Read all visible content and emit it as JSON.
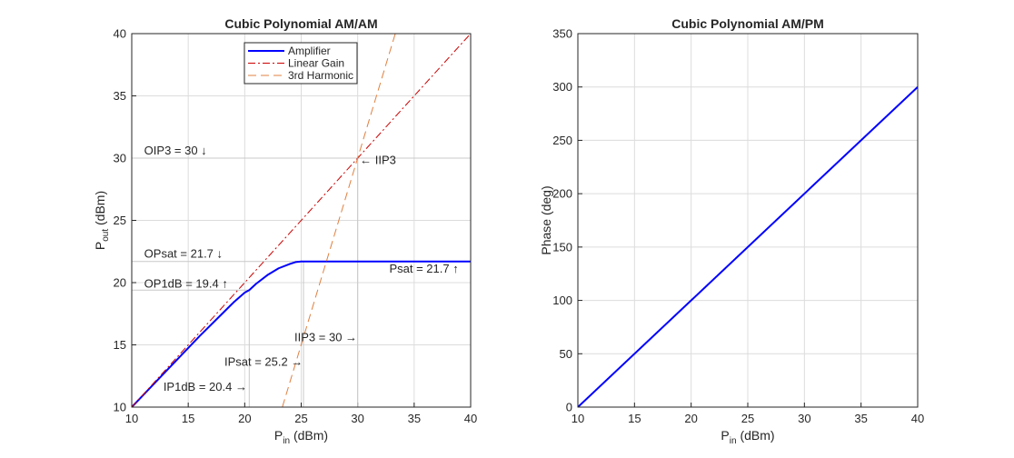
{
  "colors": {
    "amplifier": "#0000ff",
    "linear_gain": "#cc0000",
    "third_harmonic": "#e08040",
    "grid": "#dcdcdc",
    "axes": "#262626",
    "reference_line": "#c8c8c8"
  },
  "chart_data": [
    {
      "type": "line",
      "title": "Cubic Polynomial AM/AM",
      "xlabel": {
        "main": "P",
        "sub": "in",
        "rest": " (dBm)"
      },
      "ylabel": {
        "main": "P",
        "sub": "out",
        "rest": " (dBm)"
      },
      "xlim": [
        10,
        40
      ],
      "ylim": [
        10,
        40
      ],
      "xticks": [
        "10",
        "15",
        "20",
        "25",
        "30",
        "35",
        "40"
      ],
      "yticks": [
        "10",
        "15",
        "20",
        "25",
        "30",
        "35",
        "40"
      ],
      "grid": true,
      "legend": {
        "placement": "top-center",
        "labels": [
          "Amplifier",
          "Linear Gain",
          "3rd Harmonic"
        ]
      },
      "series": [
        {
          "name": "Amplifier",
          "style": "solid",
          "x": [
            10,
            12,
            14,
            16,
            18,
            19,
            20,
            20.4,
            21,
            22,
            23,
            24,
            24.5,
            25,
            25.2,
            30,
            35,
            40
          ],
          "y": [
            10,
            11.9,
            13.8,
            15.7,
            17.5,
            18.4,
            19.2,
            19.4,
            19.9,
            20.6,
            21.15,
            21.5,
            21.65,
            21.7,
            21.7,
            21.7,
            21.7,
            21.7
          ]
        },
        {
          "name": "Linear Gain",
          "style": "dashdot",
          "x": [
            10,
            40
          ],
          "y": [
            10,
            40
          ]
        },
        {
          "name": "3rd Harmonic",
          "style": "dashed",
          "x": [
            23.33,
            33.33
          ],
          "y": [
            10,
            40
          ]
        }
      ],
      "reference_lines": [
        {
          "orientation": "h",
          "value": 30,
          "from": 10,
          "to": 40
        },
        {
          "orientation": "h",
          "value": 21.7,
          "from": 10,
          "to": 40
        },
        {
          "orientation": "h",
          "value": 19.4,
          "from": 10,
          "to": 20.4
        },
        {
          "orientation": "v",
          "value": 30,
          "from": 10,
          "to": 30
        },
        {
          "orientation": "v",
          "value": 25.2,
          "from": 10,
          "to": 21.7
        },
        {
          "orientation": "v",
          "value": 20.4,
          "from": 10,
          "to": 19.4
        }
      ],
      "annotations": [
        {
          "text": "OIP3 = 30 ↓",
          "x": 11.1,
          "y": 30.6
        },
        {
          "text": "←  IIP3",
          "x": 30.2,
          "y": 29.8
        },
        {
          "text": "OPsat = 21.7 ↓",
          "x": 11.1,
          "y": 22.3
        },
        {
          "text": "Psat = 21.7  ↑",
          "x": 32.8,
          "y": 21.1
        },
        {
          "text": "OP1dB = 19.4 ↑",
          "x": 11.1,
          "y": 19.9
        },
        {
          "text": "IIP3 = 30  →",
          "x": 24.4,
          "y": 15.6
        },
        {
          "text": "IPsat = 25.2  →",
          "x": 18.2,
          "y": 13.6
        },
        {
          "text": "IP1dB = 20.4  →",
          "x": 12.8,
          "y": 11.6
        }
      ]
    },
    {
      "type": "line",
      "title": "Cubic Polynomial AM/PM",
      "xlabel": {
        "main": "P",
        "sub": "in",
        "rest": " (dBm)"
      },
      "ylabel": {
        "main": "Phase (deg)",
        "sub": "",
        "rest": ""
      },
      "xlim": [
        10,
        40
      ],
      "ylim": [
        0,
        350
      ],
      "xticks": [
        "10",
        "15",
        "20",
        "25",
        "30",
        "35",
        "40"
      ],
      "yticks": [
        "0",
        "50",
        "100",
        "150",
        "200",
        "250",
        "300",
        "350"
      ],
      "grid": true,
      "series": [
        {
          "style": "solid",
          "x": [
            10,
            40
          ],
          "y": [
            0,
            300
          ]
        }
      ]
    }
  ]
}
